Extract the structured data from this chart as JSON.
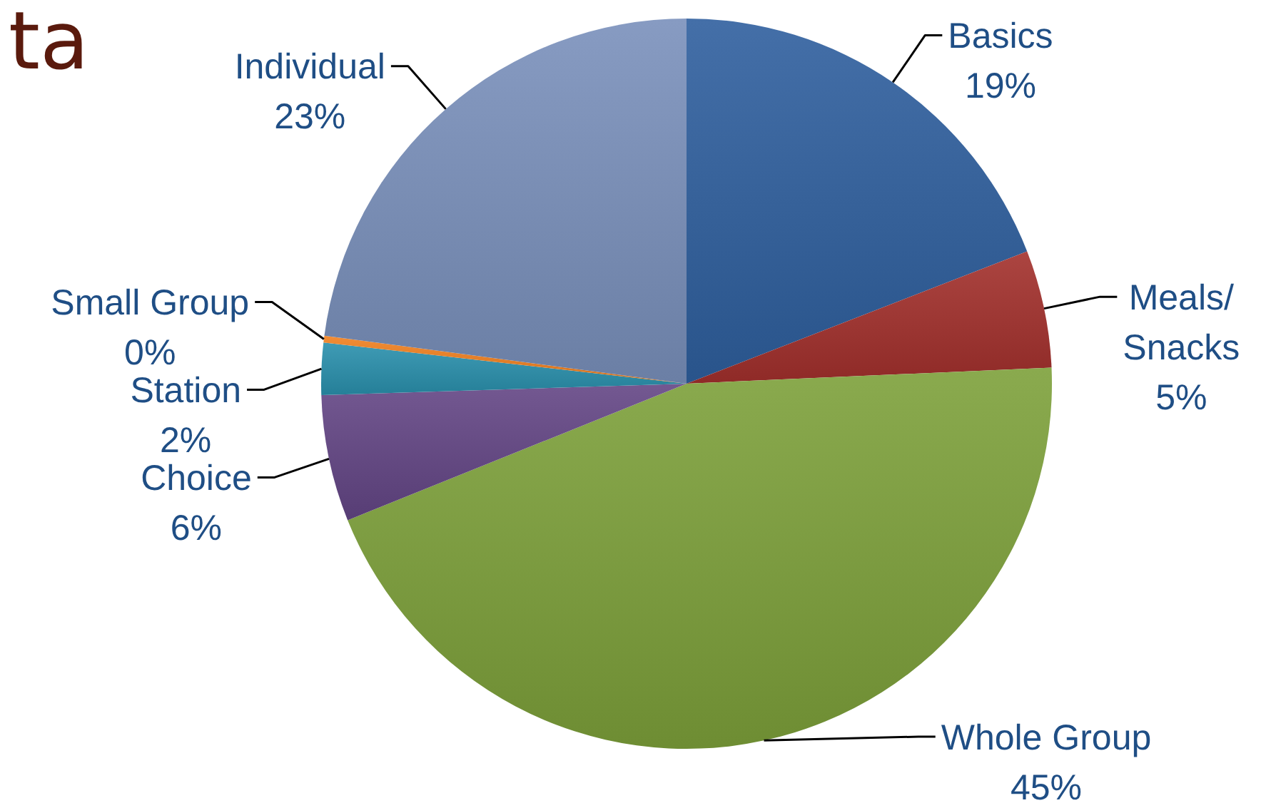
{
  "chart_data": {
    "type": "pie",
    "title": "ta",
    "categories": [
      "Basics",
      "Meals/ Snacks",
      "Whole Group",
      "Choice",
      "Station",
      "Small Group",
      "Individual"
    ],
    "values": [
      19.1,
      5.2,
      44.6,
      5.6,
      2.3,
      0.3,
      22.9
    ],
    "value_labels": [
      "19%",
      "5%",
      "45%",
      "6%",
      "2%",
      "0%",
      "23%"
    ],
    "colors": [
      "#2f5f9e",
      "#a3302c",
      "#7da03a",
      "#634585",
      "#2a90ad",
      "#f08020",
      "#7a90bb"
    ]
  }
}
